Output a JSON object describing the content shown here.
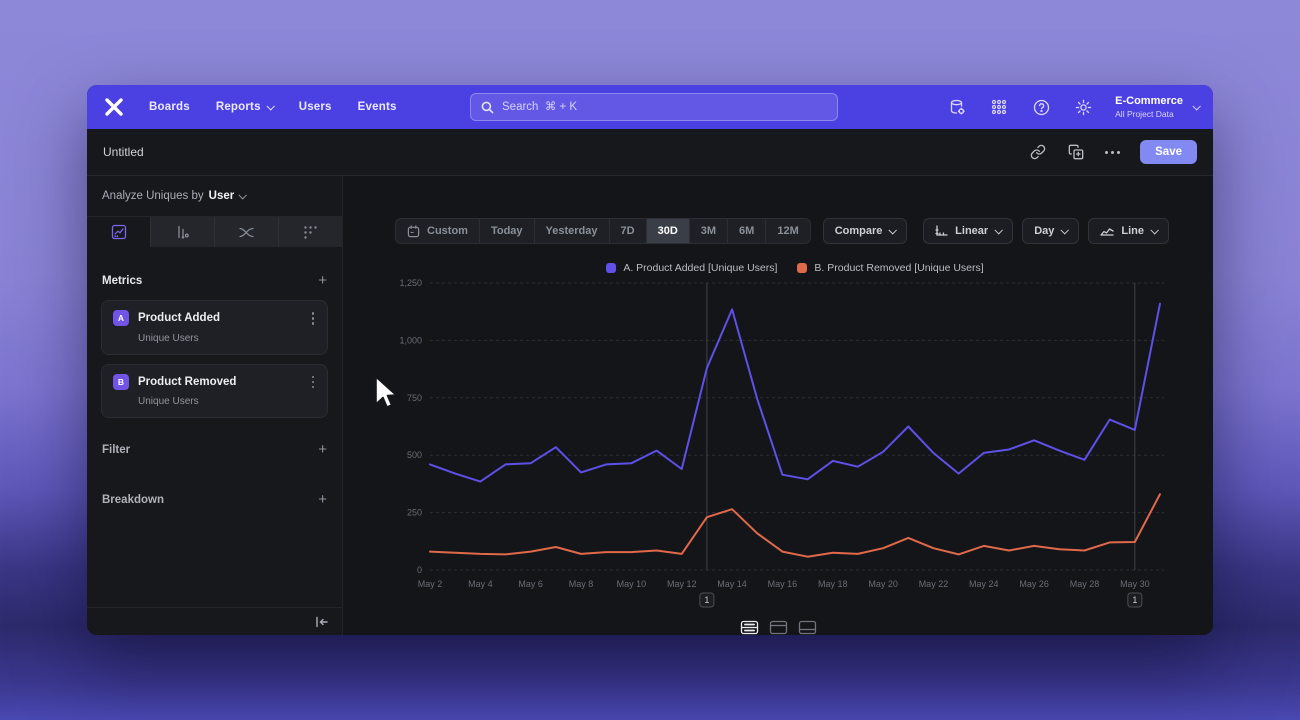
{
  "navbar": {
    "brand": "Mixpanel",
    "items": [
      "Boards",
      "Reports",
      "Users",
      "Events"
    ],
    "search_placeholder": "Search  ⌘ + K",
    "project_name": "E-Commerce",
    "project_scope": "All Project Data",
    "right_icons": [
      "data-governance-icon",
      "apps-grid-icon",
      "help-icon",
      "settings-gear-icon"
    ]
  },
  "report_header": {
    "title": "Untitled",
    "save_label": "Save",
    "action_icons": [
      "copy-link-icon",
      "duplicate-icon",
      "more-options-icon"
    ]
  },
  "sidebar": {
    "analyze_prefix": "Analyze Uniques by",
    "analyze_value": "User",
    "tabs": [
      "insights-line",
      "funnel-bars",
      "flow",
      "retention-grid"
    ],
    "selected_tab": "insights-line",
    "metrics_title": "Metrics",
    "metrics": [
      {
        "badge": "A",
        "name": "Product Added",
        "subtitle": "Unique Users"
      },
      {
        "badge": "B",
        "name": "Product Removed",
        "subtitle": "Unique Users"
      }
    ],
    "filter_label": "Filter",
    "breakdown_label": "Breakdown"
  },
  "toolbar": {
    "ranges": [
      "Custom",
      "Today",
      "Yesterday",
      "7D",
      "30D",
      "3M",
      "6M",
      "12M"
    ],
    "selected_range": "30D",
    "compare_label": "Compare",
    "scale_label": "Linear",
    "interval_label": "Day",
    "chart_type_label": "Line"
  },
  "chart_data": {
    "type": "line",
    "x": [
      "May 2",
      "May 3",
      "May 4",
      "May 5",
      "May 6",
      "May 7",
      "May 8",
      "May 9",
      "May 10",
      "May 11",
      "May 12",
      "May 13",
      "May 14",
      "May 15",
      "May 16",
      "May 17",
      "May 18",
      "May 19",
      "May 20",
      "May 21",
      "May 22",
      "May 23",
      "May 24",
      "May 25",
      "May 26",
      "May 27",
      "May 28",
      "May 29",
      "May 30",
      "May 31"
    ],
    "x_tick_labels": [
      "May 2",
      "May 4",
      "May 6",
      "May 8",
      "May 10",
      "May 12",
      "May 14",
      "May 16",
      "May 18",
      "May 20",
      "May 22",
      "May 24",
      "May 26",
      "May 28",
      "May 30"
    ],
    "series": [
      {
        "name": "A. Product Added [Unique Users]",
        "color": "#5f50e8",
        "values": [
          460,
          420,
          385,
          460,
          465,
          535,
          425,
          460,
          465,
          520,
          440,
          880,
          1135,
          745,
          415,
          395,
          475,
          450,
          515,
          625,
          510,
          420,
          510,
          525,
          565,
          520,
          480,
          655,
          610,
          1160
        ]
      },
      {
        "name": "B. Product Removed [Unique Users]",
        "color": "#e0694a",
        "values": [
          80,
          75,
          70,
          68,
          80,
          100,
          70,
          78,
          78,
          85,
          70,
          230,
          265,
          160,
          80,
          58,
          75,
          70,
          95,
          140,
          95,
          68,
          105,
          85,
          105,
          90,
          85,
          120,
          122,
          330
        ]
      }
    ],
    "ylim": [
      0,
      1250
    ],
    "yticks": [
      0,
      250,
      500,
      750,
      1000,
      1250
    ],
    "grid": "horizontal-dashed",
    "legend_position": "top-center",
    "annotations": [
      {
        "x": "May 13",
        "label": "1"
      },
      {
        "x": "May 30",
        "label": "1"
      }
    ]
  },
  "view_toggles": [
    "chart-and-table",
    "chart-top",
    "table-bottom"
  ],
  "selected_view_toggle": "chart-and-table",
  "colors": {
    "accent": "#4b40e2",
    "save_button": "#8289f0",
    "series_a": "#5f50e8",
    "series_b": "#e0694a"
  }
}
